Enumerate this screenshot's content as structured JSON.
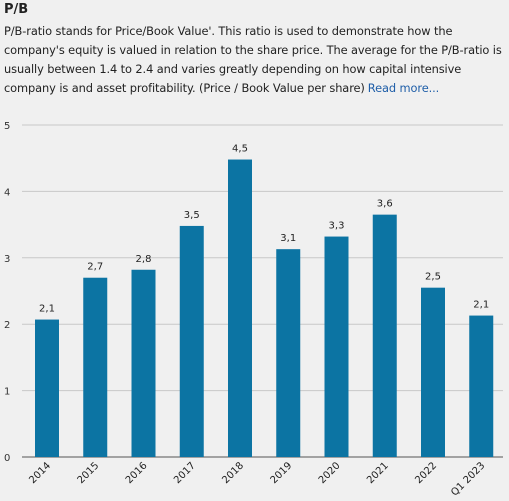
{
  "header": {
    "title": "P/B",
    "description": "P/B-ratio stands for Price/Book Value'. This ratio is used to demonstrate how the company's equity is valued in relation to the share price. The average for the P/B-ratio is usually between 1.4 to 2.4 and varies greatly depending on how capital intensive company is and asset profitability. (Price / Book Value per share)",
    "read_more_label": "Read more..."
  },
  "colors": {
    "bar": "#0c74a3",
    "grid": "#c8c8c8",
    "background": "#f0f0f0"
  },
  "chart_data": {
    "type": "bar",
    "title": "",
    "xlabel": "",
    "ylabel": "",
    "ylim": [
      0,
      5
    ],
    "yticks": [
      "0",
      "1",
      "2",
      "3",
      "4",
      "5"
    ],
    "grid": true,
    "categories": [
      "2014",
      "2015",
      "2016",
      "2017",
      "2018",
      "2019",
      "2020",
      "2021",
      "2022",
      "Q1 2023"
    ],
    "values": [
      2.07,
      2.7,
      2.82,
      3.48,
      4.48,
      3.13,
      3.32,
      3.65,
      2.55,
      2.13
    ],
    "value_labels": [
      "2,1",
      "2,7",
      "2,8",
      "3,5",
      "4,5",
      "3,1",
      "3,3",
      "3,6",
      "2,5",
      "2,1"
    ]
  }
}
